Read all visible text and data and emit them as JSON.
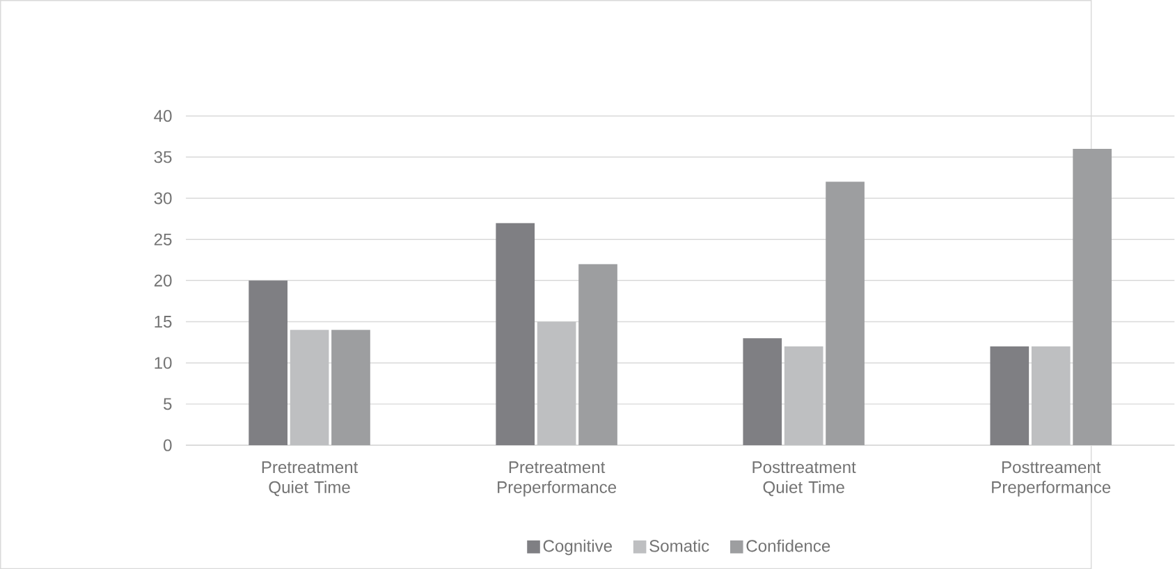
{
  "chart_data": {
    "type": "bar",
    "categories": [
      "Pretreatment Quiet Time",
      "Pretreatment Preperformance",
      "Posttreatment Quiet Time",
      "Posttreament Preperformance"
    ],
    "series": [
      {
        "name": "Cognitive",
        "color": "#7f7f83",
        "values": [
          20,
          27,
          13,
          12
        ]
      },
      {
        "name": "Somatic",
        "color": "#bebfc1",
        "values": [
          14,
          15,
          12,
          12
        ]
      },
      {
        "name": "Confidence",
        "color": "#9d9ea0",
        "values": [
          14,
          22,
          32,
          36
        ]
      }
    ],
    "ylim": [
      0,
      40
    ],
    "yticks": [
      0,
      5,
      10,
      15,
      20,
      25,
      30,
      35,
      40
    ],
    "grid": "y",
    "legend": "bottom"
  }
}
